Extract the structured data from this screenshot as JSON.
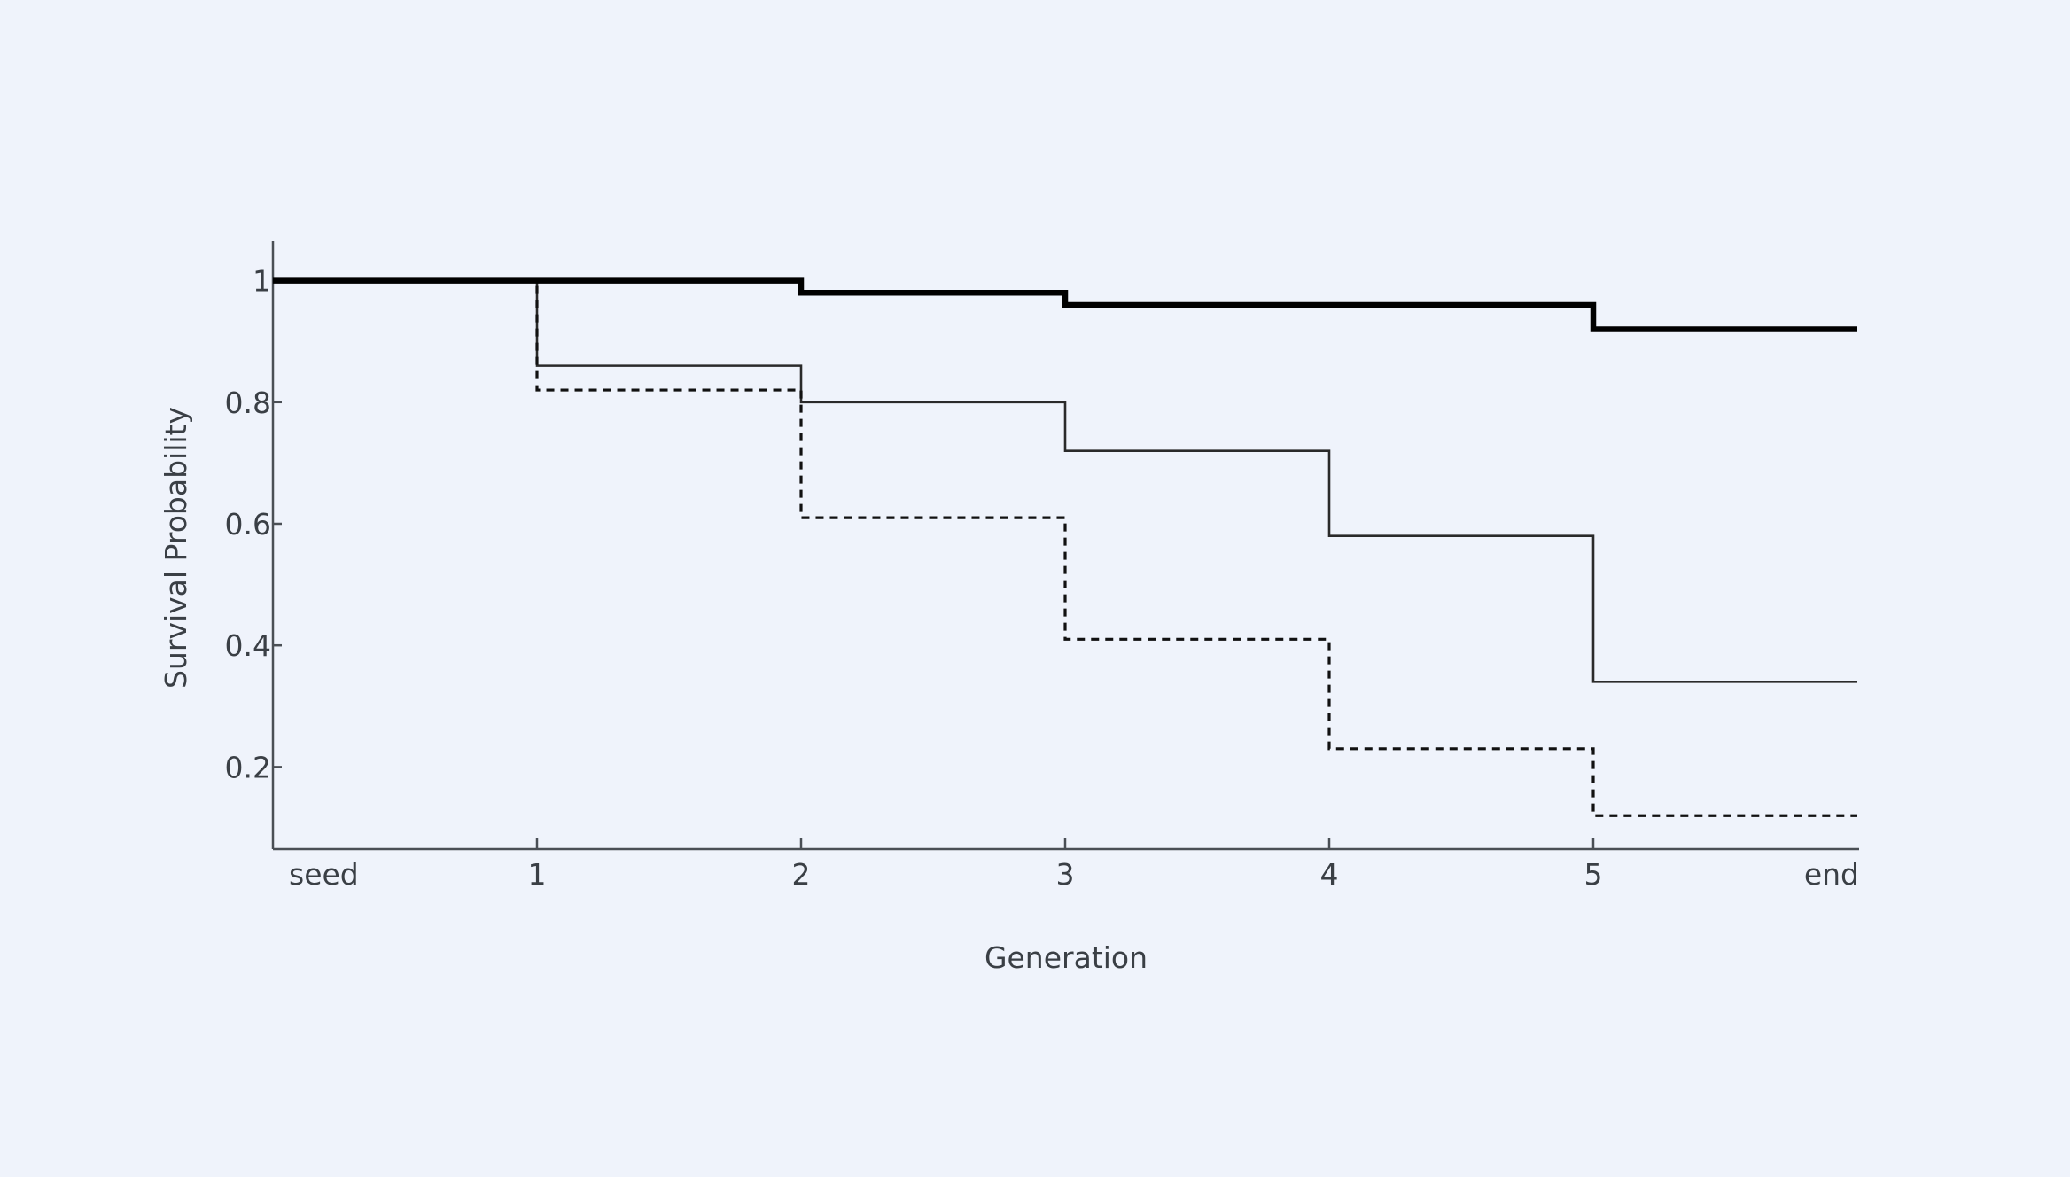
{
  "chart_data": {
    "type": "line",
    "step": true,
    "title": "",
    "xlabel": "Generation",
    "ylabel": "Survival Probability",
    "categories": [
      "seed",
      "1",
      "2",
      "3",
      "4",
      "5",
      "end"
    ],
    "ylim": [
      0.065,
      1.065
    ],
    "yticks": [
      "0.2",
      "0.4",
      "0.6",
      "0.8",
      "1"
    ],
    "grid": false,
    "legend": "none",
    "series": [
      {
        "style": "thick-solid",
        "color": "#000000",
        "values": [
          1.0,
          1.0,
          0.98,
          0.96,
          0.96,
          0.92,
          0.92
        ]
      },
      {
        "style": "thin-solid",
        "color": "#2a2a2a",
        "values": [
          1.0,
          0.86,
          0.8,
          0.72,
          0.58,
          0.34,
          0.34
        ]
      },
      {
        "style": "dashed",
        "color": "#111111",
        "values": [
          1.0,
          0.82,
          0.61,
          0.41,
          0.23,
          0.12,
          0.12
        ]
      }
    ]
  }
}
